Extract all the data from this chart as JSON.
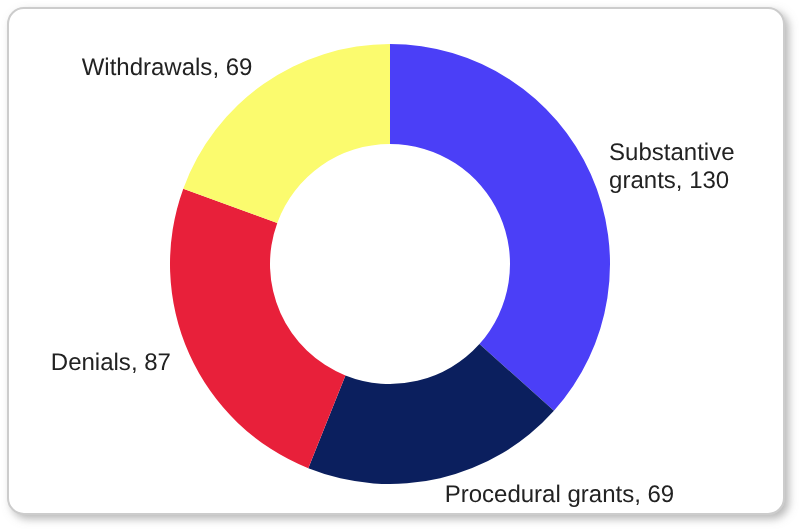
{
  "chart_data": {
    "type": "donut",
    "categories": [
      "Substantive grants",
      "Procedural grants",
      "Denials",
      "Withdrawals"
    ],
    "values": [
      130,
      69,
      87,
      69
    ],
    "value_labels": [
      ", 130",
      ", 69",
      ", 87",
      ", 69"
    ],
    "colors": [
      "#4b3ff7",
      "#0b1f5e",
      "#e8203a",
      "#fbfb6e"
    ]
  }
}
